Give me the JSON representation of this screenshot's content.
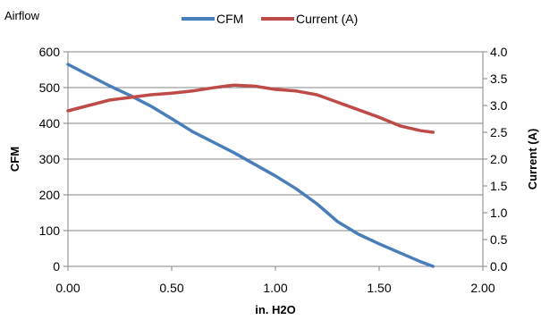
{
  "chart_data": {
    "type": "line",
    "title": "Airflow",
    "xlabel": "in. H2O",
    "ylabel": "CFM",
    "y2label": "Current (A)",
    "xlim": [
      0,
      2
    ],
    "xticks": [
      "0.00",
      "0.50",
      "1.00",
      "1.50",
      "2.00"
    ],
    "ylim": [
      0,
      600
    ],
    "yticks": [
      "0",
      "100",
      "200",
      "300",
      "400",
      "500",
      "600"
    ],
    "y2lim": [
      0,
      4
    ],
    "y2ticks": [
      "0.0",
      "0.5",
      "1.0",
      "1.5",
      "2.0",
      "2.5",
      "3.0",
      "3.5",
      "4.0"
    ],
    "grid": true,
    "legend_position": "top",
    "series": [
      {
        "name": "CFM",
        "axis": "left",
        "color": "#4a7ebb",
        "x": [
          0,
          0.1,
          0.2,
          0.3,
          0.4,
          0.5,
          0.6,
          0.8,
          1.0,
          1.1,
          1.2,
          1.3,
          1.4,
          1.5,
          1.6,
          1.7,
          1.76
        ],
        "y": [
          565,
          535,
          505,
          478,
          448,
          413,
          377,
          318,
          253,
          217,
          175,
          125,
          90,
          63,
          38,
          13,
          0
        ]
      },
      {
        "name": "Current (A)",
        "axis": "right",
        "color": "#be4b48",
        "x": [
          0,
          0.1,
          0.2,
          0.3,
          0.4,
          0.5,
          0.6,
          0.7,
          0.8,
          0.9,
          1.0,
          1.1,
          1.2,
          1.3,
          1.4,
          1.5,
          1.6,
          1.7,
          1.76
        ],
        "y": [
          2.9,
          3.0,
          3.1,
          3.15,
          3.2,
          3.23,
          3.27,
          3.33,
          3.38,
          3.36,
          3.3,
          3.27,
          3.2,
          3.06,
          2.92,
          2.78,
          2.62,
          2.53,
          2.5
        ]
      }
    ]
  }
}
